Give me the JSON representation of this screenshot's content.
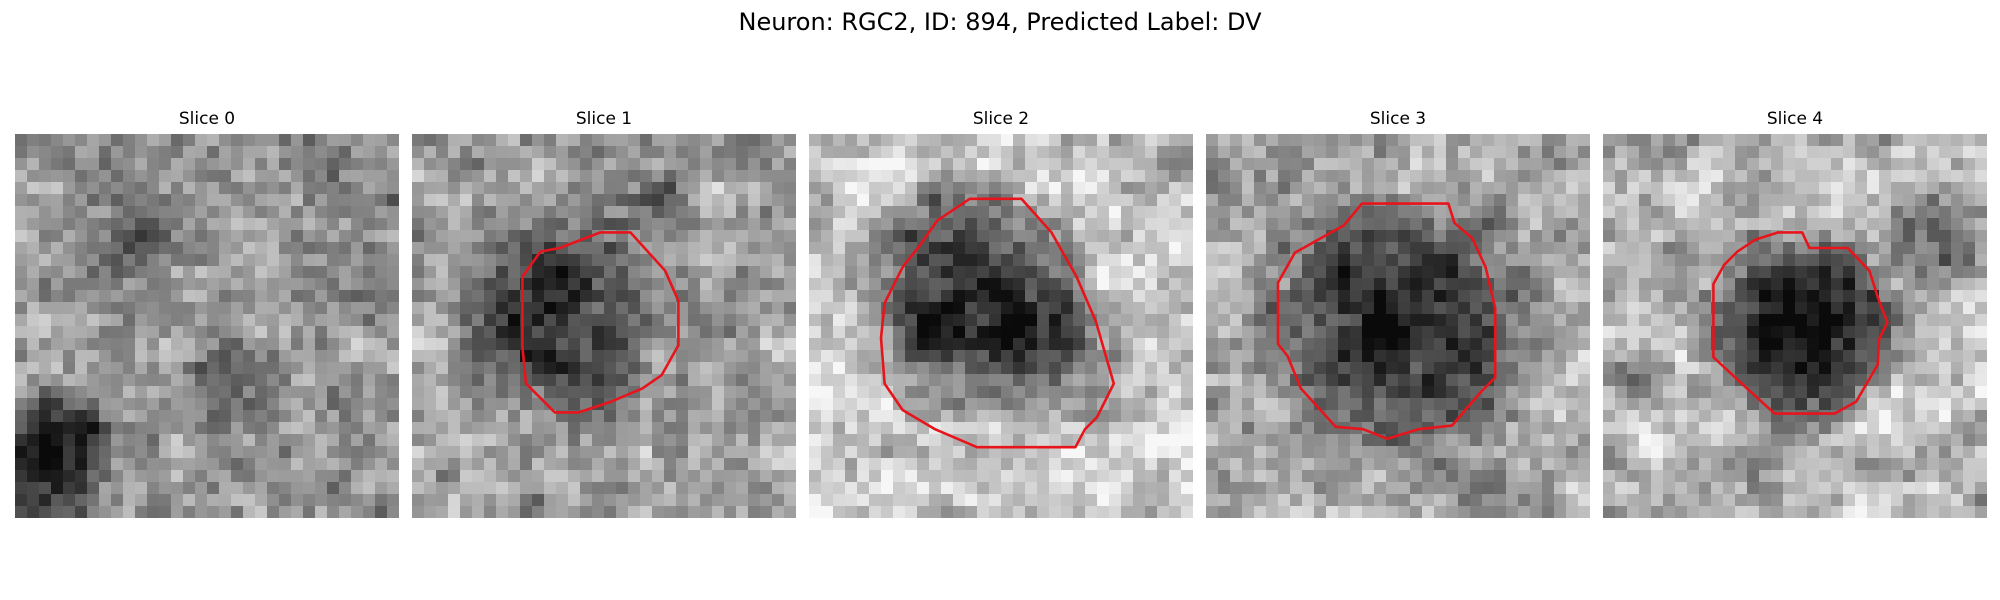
{
  "figure": {
    "title": "Neuron: RGC2, ID: 894, Predicted Label: DV"
  },
  "panels": [
    {
      "title": "Slice 0",
      "has_contour": false,
      "contour_color": "#e8141c"
    },
    {
      "title": "Slice 1",
      "has_contour": true,
      "contour_color": "#e8141c"
    },
    {
      "title": "Slice 2",
      "has_contour": true,
      "contour_color": "#e8141c"
    },
    {
      "title": "Slice 3",
      "has_contour": true,
      "contour_color": "#e8141c"
    },
    {
      "title": "Slice 4",
      "has_contour": true,
      "contour_color": "#e8141c"
    }
  ],
  "colormap": "grayscale"
}
